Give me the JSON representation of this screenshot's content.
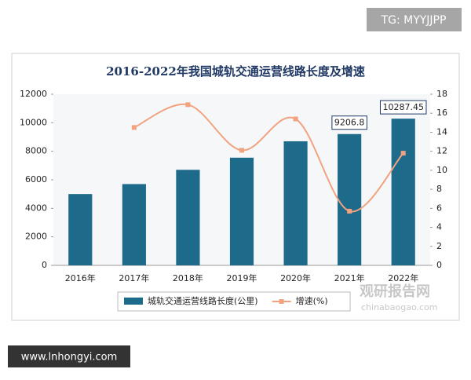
{
  "page": {
    "tag": "TG: MYYJJPP",
    "footer": "www.lnhongyi.com",
    "watermark": "观研报告网",
    "watermark_url": "chinabaogao.com"
  },
  "chart_data": {
    "type": "bar",
    "title": "2016-2022年我国城轨交通运营线路长度及增速",
    "categories": [
      "2016年",
      "2017年",
      "2018年",
      "2019年",
      "2020年",
      "2021年",
      "2022年"
    ],
    "series": [
      {
        "name": "城轨交通运营线路长度(公里)",
        "type": "bar",
        "color": "#1d6a8b",
        "axis": "y",
        "values": [
          5000,
          5700,
          6700,
          7550,
          8700,
          9206.8,
          10287.45
        ],
        "value_labels": [
          null,
          null,
          null,
          null,
          null,
          "9206.8",
          "10287.45"
        ]
      },
      {
        "name": "增速(%)",
        "type": "line",
        "color": "#f0a37e",
        "axis": "y2",
        "values": [
          null,
          14.5,
          16.9,
          12.1,
          15.4,
          5.7,
          11.8
        ]
      }
    ],
    "ylim": [
      0,
      12000
    ],
    "yticks": [
      0,
      2000,
      4000,
      6000,
      8000,
      10000,
      12000
    ],
    "y2lim": [
      0,
      18
    ],
    "y2ticks": [
      0,
      2,
      4,
      6,
      8,
      10,
      12,
      14,
      16,
      18
    ],
    "grid": false,
    "legend": "bottom"
  }
}
